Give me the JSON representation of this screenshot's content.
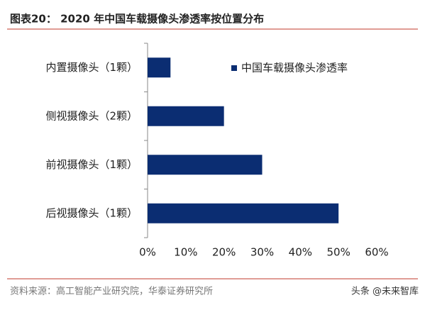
{
  "chart_data": {
    "type": "bar",
    "orientation": "horizontal",
    "title": "图表20：  2020 年中国车载摄像头渗透率按位置分布",
    "categories": [
      "内置摄像头（1颗）",
      "侧视摄像头（2颗）",
      "前视摄像头（1颗）",
      "后视摄像头（1颗）"
    ],
    "series": [
      {
        "name": "中国车载摄像头渗透率",
        "color": "#0b2d72",
        "values": [
          6,
          20,
          30,
          50
        ]
      }
    ],
    "xlim": [
      0,
      60
    ],
    "xticks": [
      {
        "value": 0,
        "label": "0%"
      },
      {
        "value": 10,
        "label": "10%"
      },
      {
        "value": 20,
        "label": "20%"
      },
      {
        "value": 30,
        "label": "30%"
      },
      {
        "value": 40,
        "label": "40%"
      },
      {
        "value": 50,
        "label": "50%"
      },
      {
        "value": 60,
        "label": "60%"
      }
    ],
    "legend": "upper right",
    "source": "资料来源：高工智能产业研究院，华泰证券研究所",
    "watermark": "头条 @未来智库"
  }
}
